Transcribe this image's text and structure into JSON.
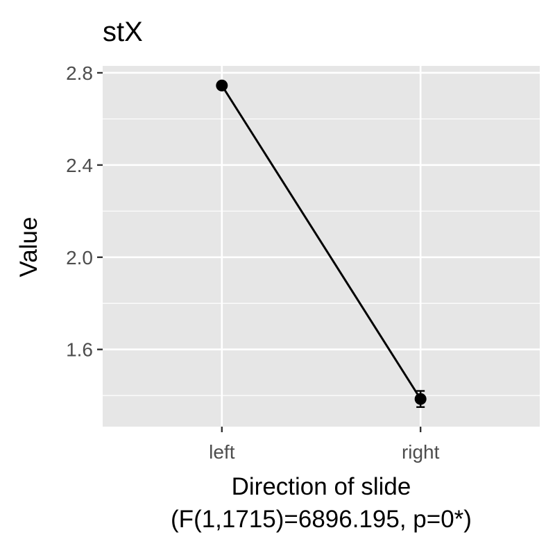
{
  "chart_data": {
    "type": "line",
    "title": "stX",
    "xlabel": "Direction of slide",
    "xlabel_note": "(F(1,1715)=6896.195, p=0*)",
    "ylabel": "Value",
    "categories": [
      "left",
      "right"
    ],
    "series": [
      {
        "values": [
          2.745,
          1.385
        ],
        "error": [
          0.012,
          0.035
        ]
      }
    ],
    "ylim": [
      1.265,
      2.83
    ],
    "yticks": [
      1.6,
      2.0,
      2.4,
      2.8
    ],
    "ytick_labels": [
      "1.6",
      "2.0",
      "2.4",
      "2.8"
    ],
    "grid": true,
    "legend": "none",
    "colors": {
      "panel": "#e6e6e6",
      "grid": "#ffffff",
      "line": "#000000",
      "tick_text": "#4d4d4d"
    }
  }
}
